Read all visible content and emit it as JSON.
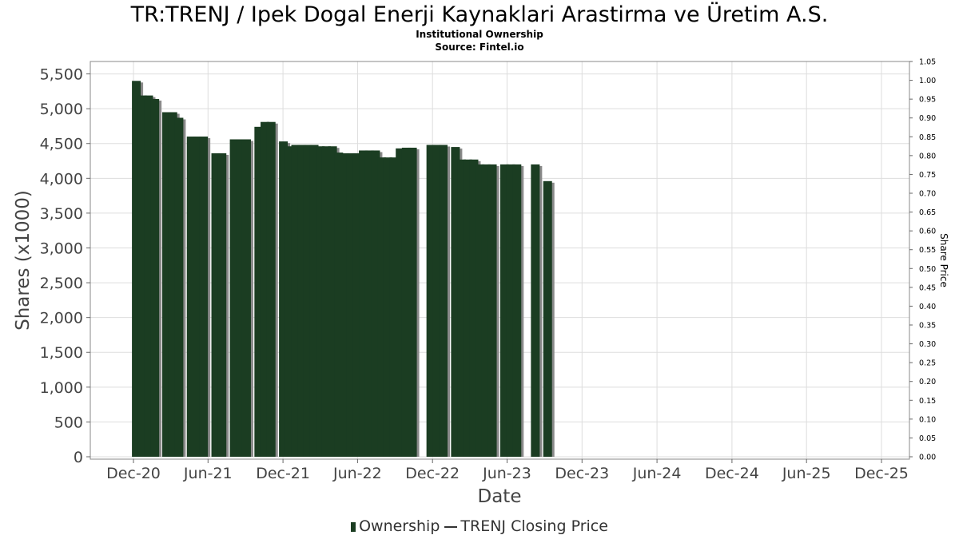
{
  "chart_data": {
    "type": "bar",
    "title": "TR:TRENJ / Ipek Dogal Enerji Kaynaklari Arastirma ve Üretim A.S.",
    "subtitle": "Institutional Ownership",
    "source": "Source: Fintel.io",
    "xlabel": "Date",
    "ylabel": "Shares (x1000)",
    "y2label": "Share Price",
    "ylim": [
      0,
      5700
    ],
    "y2lim": [
      0,
      1.05
    ],
    "yticks": [
      "0",
      "500",
      "1,000",
      "1,500",
      "2,000",
      "2,500",
      "3,000",
      "3,500",
      "4,000",
      "4,500",
      "5,000",
      "5,500"
    ],
    "y2ticks": [
      "0.00",
      "0.05",
      "0.10",
      "0.15",
      "0.20",
      "0.25",
      "0.30",
      "0.35",
      "0.40",
      "0.45",
      "0.50",
      "0.55",
      "0.60",
      "0.65",
      "0.70",
      "0.75",
      "0.80",
      "0.85",
      "0.90",
      "0.95",
      "1.00",
      "1.05"
    ],
    "xticks": [
      "Dec-20",
      "Jun-21",
      "Dec-21",
      "Jun-22",
      "Dec-22",
      "Jun-23",
      "Dec-23",
      "Jun-24",
      "Dec-24",
      "Jun-25",
      "Dec-25"
    ],
    "grid": true,
    "legend_position": "bottom",
    "colors": {
      "bar": "#1b3d22",
      "bar_shadow": "#8a8a8a",
      "grid": "#dddddd",
      "frame": "#888888",
      "line": "#333333"
    },
    "series": [
      {
        "name": "Ownership",
        "points": [
          {
            "x": "2020-12-08",
            "y": 5400
          },
          {
            "x": "2020-12-23",
            "y": 5190
          },
          {
            "x": "2021-01-07",
            "y": 5190
          },
          {
            "x": "2021-01-22",
            "y": 5140
          },
          {
            "x": "2021-02-20",
            "y": 4950
          },
          {
            "x": "2021-03-07",
            "y": 4950
          },
          {
            "x": "2021-03-22",
            "y": 4870
          },
          {
            "x": "2021-04-21",
            "y": 4600
          },
          {
            "x": "2021-05-06",
            "y": 4600
          },
          {
            "x": "2021-05-21",
            "y": 4600
          },
          {
            "x": "2021-06-20",
            "y": 4360
          },
          {
            "x": "2021-07-05",
            "y": 4360
          },
          {
            "x": "2021-08-04",
            "y": 4560
          },
          {
            "x": "2021-08-19",
            "y": 4560
          },
          {
            "x": "2021-09-03",
            "y": 4560
          },
          {
            "x": "2021-10-03",
            "y": 4740
          },
          {
            "x": "2021-10-18",
            "y": 4810
          },
          {
            "x": "2021-11-02",
            "y": 4810
          },
          {
            "x": "2021-12-02",
            "y": 4530
          },
          {
            "x": "2021-12-17",
            "y": 4460
          },
          {
            "x": "2022-01-01",
            "y": 4480
          },
          {
            "x": "2022-01-16",
            "y": 4480
          },
          {
            "x": "2022-01-31",
            "y": 4480
          },
          {
            "x": "2022-02-15",
            "y": 4480
          },
          {
            "x": "2022-03-02",
            "y": 4460
          },
          {
            "x": "2022-03-17",
            "y": 4460
          },
          {
            "x": "2022-04-01",
            "y": 4460
          },
          {
            "x": "2022-04-16",
            "y": 4370
          },
          {
            "x": "2022-05-01",
            "y": 4360
          },
          {
            "x": "2022-05-16",
            "y": 4360
          },
          {
            "x": "2022-05-31",
            "y": 4360
          },
          {
            "x": "2022-06-15",
            "y": 4400
          },
          {
            "x": "2022-06-30",
            "y": 4400
          },
          {
            "x": "2022-07-15",
            "y": 4400
          },
          {
            "x": "2022-07-30",
            "y": 4300
          },
          {
            "x": "2022-08-14",
            "y": 4300
          },
          {
            "x": "2022-08-29",
            "y": 4300
          },
          {
            "x": "2022-09-13",
            "y": 4430
          },
          {
            "x": "2022-09-28",
            "y": 4440
          },
          {
            "x": "2022-10-13",
            "y": 4440
          },
          {
            "x": "2022-11-27",
            "y": 4480
          },
          {
            "x": "2022-12-12",
            "y": 4480
          },
          {
            "x": "2022-12-27",
            "y": 4480
          },
          {
            "x": "2023-01-26",
            "y": 4450
          },
          {
            "x": "2023-02-10",
            "y": 4270
          },
          {
            "x": "2023-02-25",
            "y": 4270
          },
          {
            "x": "2023-03-12",
            "y": 4270
          },
          {
            "x": "2023-03-27",
            "y": 4200
          },
          {
            "x": "2023-04-11",
            "y": 4200
          },
          {
            "x": "2023-04-26",
            "y": 4200
          },
          {
            "x": "2023-05-26",
            "y": 4200
          },
          {
            "x": "2023-06-10",
            "y": 4200
          },
          {
            "x": "2023-06-25",
            "y": 4200
          },
          {
            "x": "2023-08-09",
            "y": 4200
          },
          {
            "x": "2023-09-08",
            "y": 3960
          }
        ]
      },
      {
        "name": "TRENJ Closing Price",
        "points": []
      }
    ]
  }
}
